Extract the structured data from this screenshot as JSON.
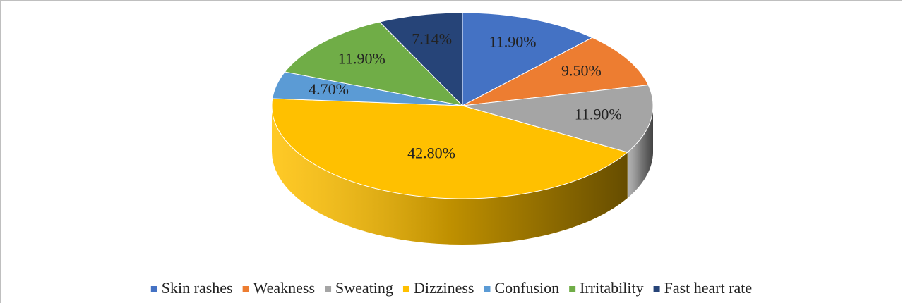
{
  "chart_data": {
    "type": "pie3d",
    "categories": [
      "Skin rashes",
      "Weakness",
      "Sweating",
      "Dizziness",
      "Confusion",
      "Irritability",
      "Fast heart rate"
    ],
    "values": [
      11.9,
      9.5,
      11.9,
      42.8,
      4.7,
      11.9,
      7.14
    ],
    "value_labels": [
      "11.90%",
      "9.50%",
      "11.90%",
      "42.80%",
      "4.70%",
      "11.90%",
      "7.14%"
    ],
    "colors": [
      "#4472c4",
      "#ed7d31",
      "#a5a5a5",
      "#ffc000",
      "#5b9bd5",
      "#70ad47",
      "#264478"
    ],
    "legend": "bottom"
  }
}
